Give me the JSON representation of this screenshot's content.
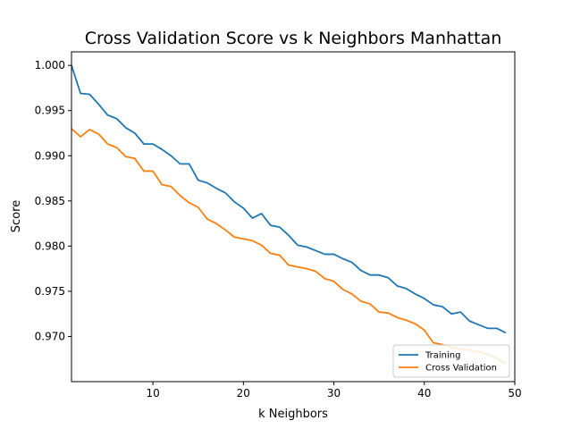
{
  "chart_data": {
    "type": "line",
    "title": "Cross Validation Score vs k Neighbors Manhattan",
    "xlabel": "k Neighbors",
    "ylabel": "Score",
    "xlim": [
      1,
      50
    ],
    "ylim": [
      0.965,
      1.0015
    ],
    "xticks": [
      10,
      20,
      30,
      40,
      50
    ],
    "yticks": [
      0.97,
      0.975,
      0.98,
      0.985,
      0.99,
      0.995,
      1.0
    ],
    "ytick_labels": [
      "0.970",
      "0.975",
      "0.980",
      "0.985",
      "0.990",
      "0.995",
      "1.000"
    ],
    "grid": false,
    "legend_position": "lower-right",
    "x": [
      1,
      2,
      3,
      4,
      5,
      6,
      7,
      8,
      9,
      10,
      11,
      12,
      13,
      14,
      15,
      16,
      17,
      18,
      19,
      20,
      21,
      22,
      23,
      24,
      25,
      26,
      27,
      28,
      29,
      30,
      31,
      32,
      33,
      34,
      35,
      36,
      37,
      38,
      39,
      40,
      41,
      42,
      43,
      44,
      45,
      46,
      47,
      48,
      49
    ],
    "series": [
      {
        "name": "Training",
        "color": "#1f77b4",
        "values": [
          1.0,
          0.9969,
          0.9968,
          0.9957,
          0.9945,
          0.9941,
          0.9931,
          0.9925,
          0.9913,
          0.9913,
          0.9907,
          0.99,
          0.9891,
          0.9891,
          0.9873,
          0.987,
          0.9864,
          0.9859,
          0.9849,
          0.9842,
          0.9831,
          0.9836,
          0.9823,
          0.9821,
          0.9812,
          0.9801,
          0.9799,
          0.9795,
          0.9791,
          0.9791,
          0.9786,
          0.9782,
          0.9773,
          0.9768,
          0.9768,
          0.9765,
          0.9756,
          0.9753,
          0.9747,
          0.9742,
          0.9735,
          0.9733,
          0.9725,
          0.9727,
          0.9717,
          0.9713,
          0.9709,
          0.9709,
          0.9704
        ]
      },
      {
        "name": "Cross Validation",
        "color": "#ff7f0e",
        "values": [
          0.993,
          0.9921,
          0.9929,
          0.9924,
          0.9913,
          0.9909,
          0.9899,
          0.9897,
          0.9883,
          0.9883,
          0.9868,
          0.9866,
          0.9856,
          0.9848,
          0.9843,
          0.983,
          0.9825,
          0.9818,
          0.981,
          0.9808,
          0.9806,
          0.9801,
          0.9792,
          0.979,
          0.9779,
          0.9777,
          0.9775,
          0.9772,
          0.9764,
          0.9761,
          0.9752,
          0.9747,
          0.9739,
          0.9736,
          0.9727,
          0.9726,
          0.9721,
          0.9718,
          0.9714,
          0.9707,
          0.9693,
          0.9691,
          0.9688,
          0.9686,
          0.9685,
          0.9683,
          0.968,
          0.9676,
          0.967
        ]
      }
    ]
  }
}
